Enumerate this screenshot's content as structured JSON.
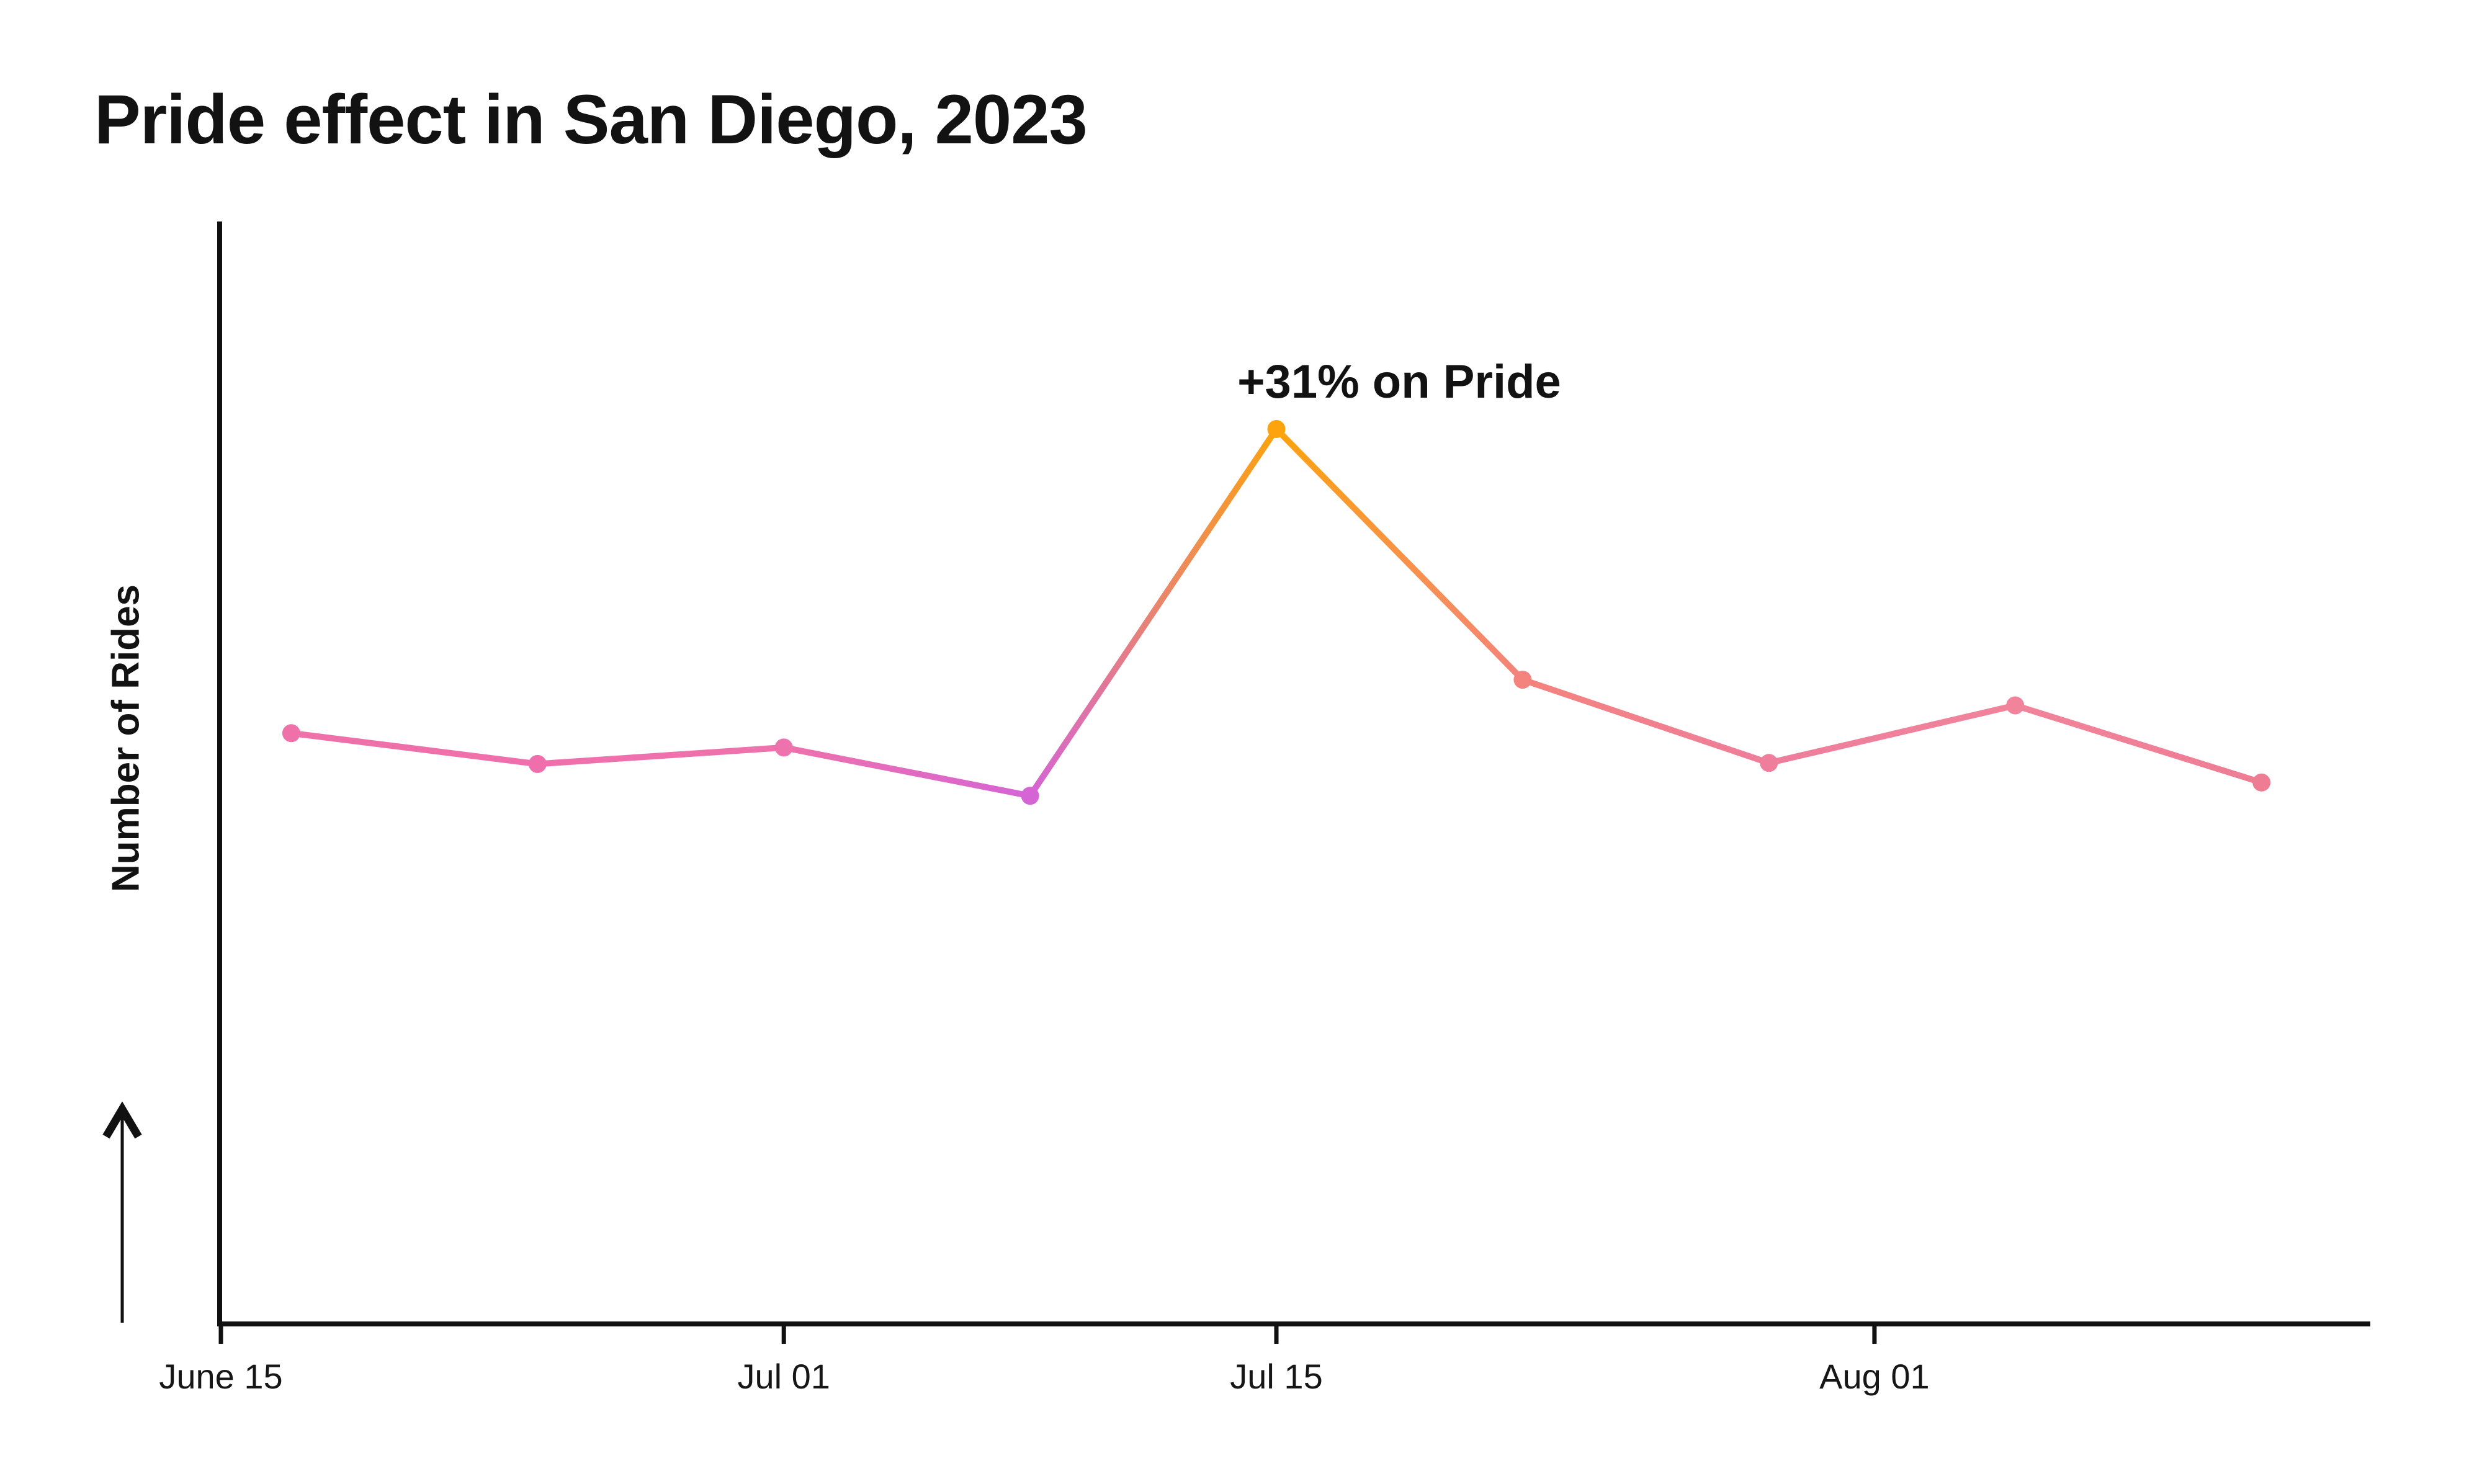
{
  "page": {
    "background": "#FFFFFF"
  },
  "title": {
    "text": "Pride effect in San Diego, 2023",
    "color": "#121212"
  },
  "annotation": {
    "text": "+31% on Pride",
    "color": "#121212"
  },
  "chart_data": {
    "type": "line",
    "title": "Pride effect in San Diego, 2023",
    "xlabel": "",
    "ylabel": "Number of Rides",
    "ylim": [
      43.9,
      151.2
    ],
    "grid": false,
    "legend": "none",
    "axis_color": "#111111",
    "line_width": 10,
    "dot_radius": 14.5,
    "x_unit": "days since June 15",
    "points": [
      {
        "date": "Jun 17",
        "day": 2,
        "value": 101.4,
        "color": "#EE71A9"
      },
      {
        "date": "Jun 24",
        "day": 9,
        "value": 98.4,
        "color": "#EF6FAC"
      },
      {
        "date": "Jul 01",
        "day": 16,
        "value": 100.0,
        "color": "#EE72AB"
      },
      {
        "date": "Jul 08",
        "day": 23,
        "value": 95.3,
        "color": "#D564D5"
      },
      {
        "date": "Jul 15",
        "day": 30,
        "value": 131.0,
        "color": "#FCA30D"
      },
      {
        "date": "Jul 22",
        "day": 37,
        "value": 106.6,
        "color": "#F4837D"
      },
      {
        "date": "Jul 29",
        "day": 44,
        "value": 98.5,
        "color": "#EE7E9C"
      },
      {
        "date": "Aug 05",
        "day": 51,
        "value": 104.1,
        "color": "#F1839B"
      },
      {
        "date": "Aug 12",
        "day": 58,
        "value": 96.6,
        "color": "#EE7D94"
      }
    ],
    "peak": {
      "date": "Jul 15",
      "value": 131.0,
      "annotation": "+31% on Pride",
      "color": "#FCA30D"
    },
    "x_ticks": [
      {
        "label": "June 15",
        "day": 0
      },
      {
        "label": "Jul 01",
        "day": 16
      },
      {
        "label": "Jul 15",
        "day": 30
      },
      {
        "label": "Aug 01",
        "day": 47
      }
    ]
  }
}
